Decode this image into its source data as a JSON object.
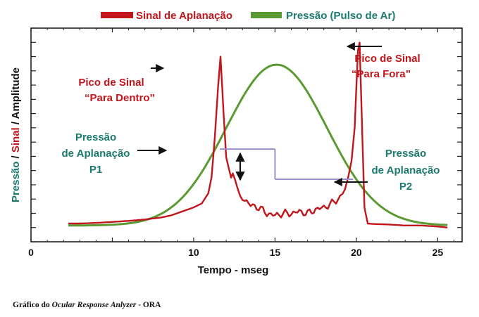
{
  "chart_data": {
    "type": "line",
    "title": "",
    "xlabel": "Tempo - mseg",
    "ylabel_parts": [
      {
        "text": "Pressão",
        "color": "#1a7a6e"
      },
      {
        "text": " / ",
        "color": "#111111"
      },
      {
        "text": "Sinal",
        "color": "#c0161c"
      },
      {
        "text": " / Amplitude",
        "color": "#111111"
      }
    ],
    "xlim": [
      0,
      26.5
    ],
    "ylim": [
      0,
      1.0
    ],
    "xticks": [
      0,
      5,
      10,
      15,
      20,
      25
    ],
    "xtick_labels": [
      "0",
      "",
      "10",
      "15",
      "20",
      "25"
    ],
    "legend": [
      {
        "label": "Sinal de Aplanação",
        "color": "#c0161c"
      },
      {
        "label": "Pressão (Pulso de Ar)",
        "color": "#5b9a32"
      }
    ],
    "series": [
      {
        "name": "Sinal de Aplanação",
        "color": "#c0161c",
        "points": [
          [
            2.3,
            0.07
          ],
          [
            3,
            0.07
          ],
          [
            4,
            0.073
          ],
          [
            5,
            0.078
          ],
          [
            6,
            0.083
          ],
          [
            7,
            0.09
          ],
          [
            8,
            0.1
          ],
          [
            8.6,
            0.11
          ],
          [
            9.3,
            0.13
          ],
          [
            10,
            0.15
          ],
          [
            10.5,
            0.17
          ],
          [
            10.9,
            0.22
          ],
          [
            11.1,
            0.3
          ],
          [
            11.3,
            0.5
          ],
          [
            11.5,
            0.75
          ],
          [
            11.65,
            0.9
          ],
          [
            11.85,
            0.6
          ],
          [
            12.0,
            0.4
          ],
          [
            12.2,
            0.33
          ],
          [
            12.4,
            0.3
          ],
          [
            12.7,
            0.25
          ],
          [
            13,
            0.2
          ],
          [
            13.5,
            0.16
          ],
          [
            14,
            0.15
          ],
          [
            14.5,
            0.12
          ],
          [
            15,
            0.11
          ],
          [
            15.5,
            0.12
          ],
          [
            16,
            0.12
          ],
          [
            16.5,
            0.13
          ],
          [
            17,
            0.12
          ],
          [
            17.5,
            0.14
          ],
          [
            18,
            0.15
          ],
          [
            18.5,
            0.17
          ],
          [
            19,
            0.2
          ],
          [
            19.3,
            0.24
          ],
          [
            19.5,
            0.3
          ],
          [
            19.7,
            0.38
          ],
          [
            19.9,
            0.55
          ],
          [
            20.0,
            0.75
          ],
          [
            20.1,
            0.93
          ],
          [
            20.2,
            0.97
          ],
          [
            20.35,
            0.55
          ],
          [
            20.5,
            0.15
          ],
          [
            20.7,
            0.07
          ],
          [
            21,
            0.068
          ],
          [
            22,
            0.065
          ],
          [
            23,
            0.06
          ],
          [
            24,
            0.06
          ],
          [
            25,
            0.055
          ],
          [
            25.6,
            0.05
          ]
        ]
      },
      {
        "name": "Pressão (Pulso de Ar)",
        "gaussian": {
          "amplitude": 0.8,
          "center": 15.1,
          "sigma": 3.1,
          "baseline": 0.06,
          "from": 2.3,
          "to": 25.6
        },
        "color": "#5b9a32"
      }
    ],
    "annotations": [
      {
        "name": "pico-dentro",
        "lines": [
          "Pico de Sinal",
          "“Para Dentro”"
        ],
        "color": "#c0161c"
      },
      {
        "name": "pico-fora",
        "lines": [
          "Pico de Sinal",
          "“Para Fora”"
        ],
        "color": "#c0161c"
      },
      {
        "name": "aplanacao-p1",
        "lines": [
          "Pressão",
          "de Aplanação",
          "P1"
        ],
        "color": "#1a7a6e"
      },
      {
        "name": "aplanacao-p2",
        "lines": [
          "Pressão",
          "de Aplanação",
          "P2"
        ],
        "color": "#1a7a6e"
      }
    ],
    "reference_levels": [
      {
        "name": "P1",
        "x_from": 11.6,
        "x_to": 15.0,
        "y": 0.44
      },
      {
        "name": "P2",
        "x_from": 15.0,
        "x_to": 19.8,
        "y": 0.29
      }
    ]
  },
  "caption": {
    "prefix": "Gráfico do ",
    "italic": "Ocular Response Anlyzer",
    "suffix": " - ORA"
  }
}
